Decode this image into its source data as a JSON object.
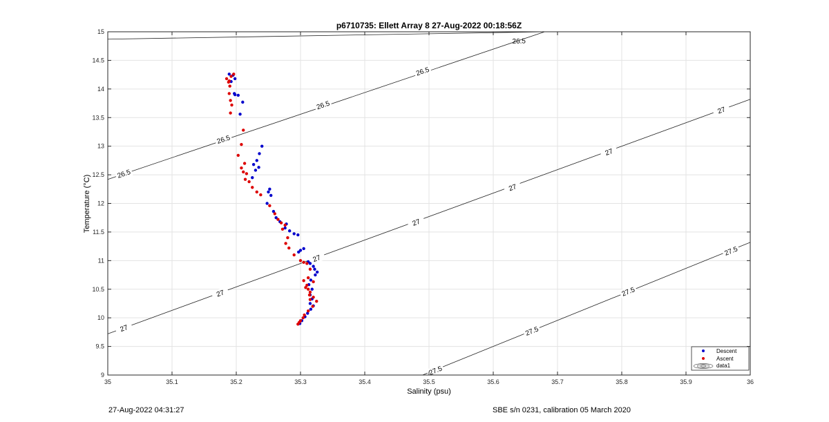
{
  "chart_data": {
    "type": "scatter",
    "title": "p6710735: Ellett Array 8 27-Aug-2022 00:18:56Z",
    "xlabel": "Salinity (psu)",
    "ylabel": "Temperature (°C)",
    "xlim": [
      35,
      36
    ],
    "ylim": [
      9,
      15
    ],
    "xticks": [
      35,
      35.1,
      35.2,
      35.3,
      35.4,
      35.5,
      35.6,
      35.7,
      35.8,
      35.9,
      36
    ],
    "xtick_labels": [
      "35",
      "35.1",
      "35.2",
      "35.3",
      "35.4",
      "35.5",
      "35.6",
      "35.7",
      "35.8",
      "35.9",
      "36"
    ],
    "yticks": [
      9,
      9.5,
      10,
      10.5,
      11,
      11.5,
      12,
      12.5,
      13,
      13.5,
      14,
      14.5,
      15
    ],
    "ytick_labels": [
      "9",
      "9.5",
      "10",
      "10.5",
      "11",
      "11.5",
      "12",
      "12.5",
      "13",
      "13.5",
      "14",
      "14.5",
      "15"
    ],
    "grid": true,
    "legend_position": "bottom-right",
    "legend": [
      "Descent",
      "Ascent",
      "data1"
    ],
    "series": [
      {
        "name": "Descent",
        "color": "#0000cc",
        "x": [
          35.189,
          35.195,
          35.198,
          35.192,
          35.197,
          35.203,
          35.21,
          35.206,
          35.198,
          35.24,
          35.236,
          35.232,
          35.227,
          35.235,
          35.23,
          35.225,
          35.252,
          35.25,
          35.254,
          35.248,
          35.258,
          35.262,
          35.268,
          35.278,
          35.276,
          35.283,
          35.29,
          35.296,
          35.305,
          35.3,
          35.297,
          35.312,
          35.315,
          35.32,
          35.322,
          35.326,
          35.323,
          35.316,
          35.313,
          35.318,
          35.315,
          35.318,
          35.315,
          35.32,
          35.316,
          35.311,
          35.307,
          35.302,
          35.299
        ],
        "y": [
          14.26,
          14.24,
          14.18,
          14.13,
          13.92,
          13.89,
          13.77,
          13.56,
          13.9,
          13.0,
          12.87,
          12.75,
          12.68,
          12.63,
          12.58,
          12.45,
          12.25,
          12.2,
          12.14,
          12.0,
          11.86,
          11.75,
          11.68,
          11.64,
          11.57,
          11.52,
          11.47,
          11.45,
          11.21,
          11.18,
          11.15,
          10.98,
          10.95,
          10.9,
          10.85,
          10.8,
          10.75,
          10.66,
          10.58,
          10.5,
          10.4,
          10.33,
          10.25,
          10.21,
          10.15,
          10.08,
          10.02,
          9.95,
          9.9
        ]
      },
      {
        "name": "Ascent",
        "color": "#dd0000",
        "x": [
          35.185,
          35.188,
          35.19,
          35.192,
          35.196,
          35.189,
          35.191,
          35.193,
          35.191,
          35.189,
          35.211,
          35.208,
          35.203,
          35.213,
          35.208,
          35.211,
          35.214,
          35.216,
          35.22,
          35.225,
          35.232,
          35.238,
          35.252,
          35.26,
          35.265,
          35.27,
          35.276,
          35.272,
          35.28,
          35.277,
          35.282,
          35.29,
          35.3,
          35.305,
          35.31,
          35.315,
          35.312,
          35.32,
          35.31,
          35.305,
          35.308,
          35.312,
          35.315,
          35.314,
          35.32,
          35.315,
          35.325,
          35.319,
          35.312,
          35.306,
          35.304,
          35.3,
          35.298,
          35.296
        ],
        "y": [
          14.18,
          14.12,
          14.05,
          14.22,
          14.26,
          13.92,
          13.8,
          13.72,
          13.58,
          14.14,
          13.28,
          13.03,
          12.84,
          12.7,
          12.62,
          12.55,
          12.42,
          12.52,
          12.38,
          12.28,
          12.2,
          12.15,
          11.96,
          11.82,
          11.72,
          11.66,
          11.62,
          11.55,
          11.4,
          11.3,
          11.22,
          11.1,
          11.0,
          10.97,
          10.95,
          10.85,
          10.7,
          10.63,
          10.57,
          10.65,
          10.53,
          10.5,
          10.45,
          10.4,
          10.36,
          10.32,
          10.29,
          10.2,
          10.12,
          10.05,
          10.0,
          9.95,
          9.92,
          9.89
        ]
      }
    ],
    "isopycnals": [
      {
        "label": "26.5",
        "points": [
          [
            35,
            14.87
          ],
          [
            35.68,
            15.0
          ]
        ],
        "label_at": [
          [
            35.64,
            14.84
          ]
        ]
      },
      {
        "label": "26.5",
        "points": [
          [
            35,
            12.42
          ],
          [
            35.68,
            15.0
          ]
        ],
        "label_at": [
          [
            35.025,
            12.52
          ],
          [
            35.18,
            13.12
          ],
          [
            35.335,
            13.72
          ],
          [
            35.49,
            14.31
          ]
        ]
      },
      {
        "label": "27",
        "points": [
          [
            35,
            9.72
          ],
          [
            36,
            13.82
          ]
        ],
        "label_at": [
          [
            35.025,
            9.82
          ],
          [
            35.175,
            10.43
          ],
          [
            35.325,
            11.04
          ],
          [
            35.48,
            11.67
          ],
          [
            35.63,
            12.28
          ],
          [
            35.78,
            12.9
          ],
          [
            35.955,
            13.63
          ]
        ]
      },
      {
        "label": "27.5",
        "points": [
          [
            35.49,
            9.0
          ],
          [
            36,
            11.32
          ]
        ],
        "label_at": [
          [
            35.51,
            9.08
          ],
          [
            35.66,
            9.77
          ],
          [
            35.81,
            10.46
          ],
          [
            35.97,
            11.17
          ]
        ]
      }
    ]
  },
  "footer": {
    "timestamp": "27-Aug-2022 04:31:27",
    "calibration": "SBE s/n 0231, calibration 05 March 2020"
  }
}
